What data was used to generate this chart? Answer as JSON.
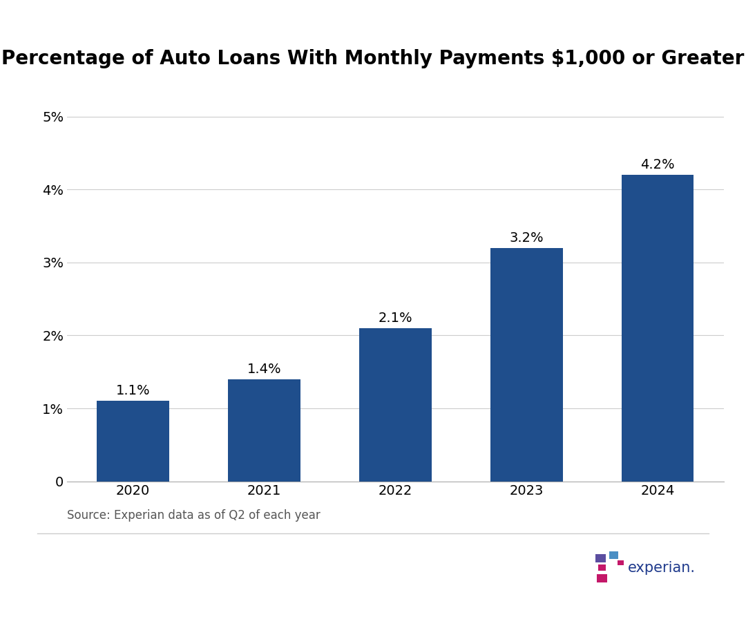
{
  "title": "Percentage of Auto Loans With Monthly Payments $1,000 or Greater",
  "categories": [
    "2020",
    "2021",
    "2022",
    "2023",
    "2024"
  ],
  "values": [
    1.1,
    1.4,
    2.1,
    3.2,
    4.2
  ],
  "bar_color": "#1F4E8C",
  "bar_width": 0.55,
  "ylim": [
    0,
    5.5
  ],
  "yticks": [
    0,
    1,
    2,
    3,
    4,
    5
  ],
  "ytick_labels": [
    "0",
    "1%",
    "2%",
    "3%",
    "4%",
    "5%"
  ],
  "source_text": "Source: Experian data as of Q2 of each year",
  "background_color": "#ffffff",
  "title_fontsize": 20,
  "tick_fontsize": 14,
  "source_fontsize": 12,
  "annotation_fontsize": 14,
  "grid_color": "#cccccc",
  "experian_text_color": "#1F3A8C",
  "footer_line_color": "#cccccc"
}
